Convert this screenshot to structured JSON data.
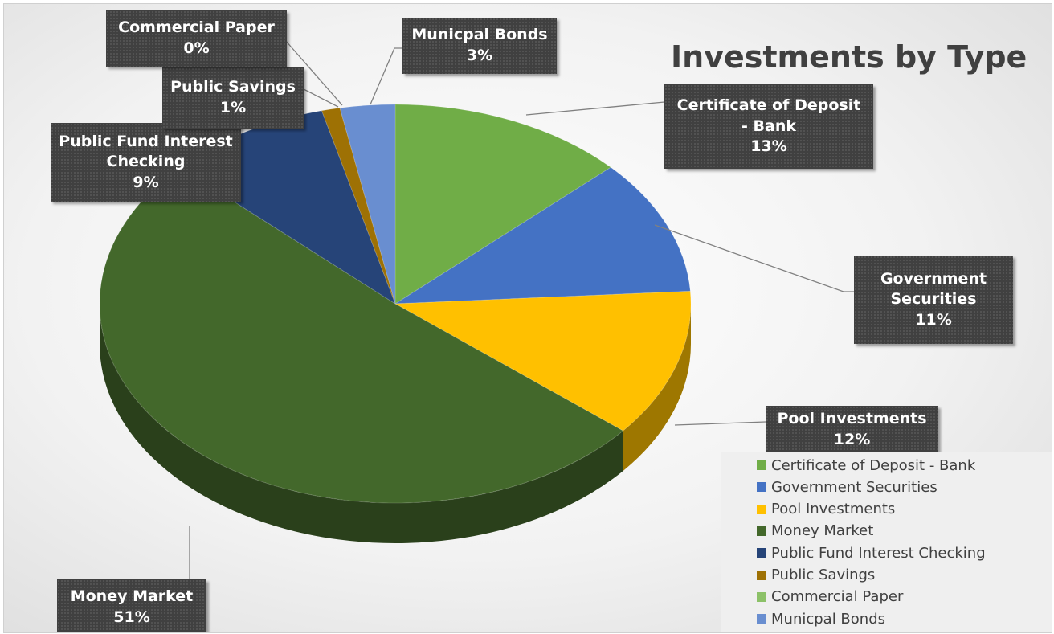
{
  "chart_data": {
    "type": "pie",
    "title": "Investments by Type",
    "categories": [
      "Certificate of Deposit - Bank",
      "Government Securities",
      "Pool Investments",
      "Money Market",
      "Public Fund Interest Checking",
      "Public Savings",
      "Commercial Paper",
      "Municpal Bonds"
    ],
    "values": [
      13,
      11,
      12,
      51,
      9,
      1,
      0,
      3
    ],
    "colors": [
      "#70ad47",
      "#4472c4",
      "#ffc000",
      "#43682b",
      "#264478",
      "#9e7104",
      "#8cc168",
      "#698ed0"
    ],
    "data_labels": [
      {
        "lines": [
          "Certificate of Deposit",
          "- Bank"
        ],
        "value": "13%"
      },
      {
        "lines": [
          "Government",
          "Securities"
        ],
        "value": "11%"
      },
      {
        "lines": [
          "Pool Investments"
        ],
        "value": "12%"
      },
      {
        "lines": [
          "Money Market"
        ],
        "value": "51%"
      },
      {
        "lines": [
          "Public Fund Interest",
          "Checking"
        ],
        "value": "9%"
      },
      {
        "lines": [
          "Public Savings"
        ],
        "value": "1%"
      },
      {
        "lines": [
          "Commercial Paper"
        ],
        "value": "0%"
      },
      {
        "lines": [
          "Municpal Bonds"
        ],
        "value": "3%"
      }
    ],
    "legend_position": "bottom-right",
    "style": "3D pie"
  }
}
